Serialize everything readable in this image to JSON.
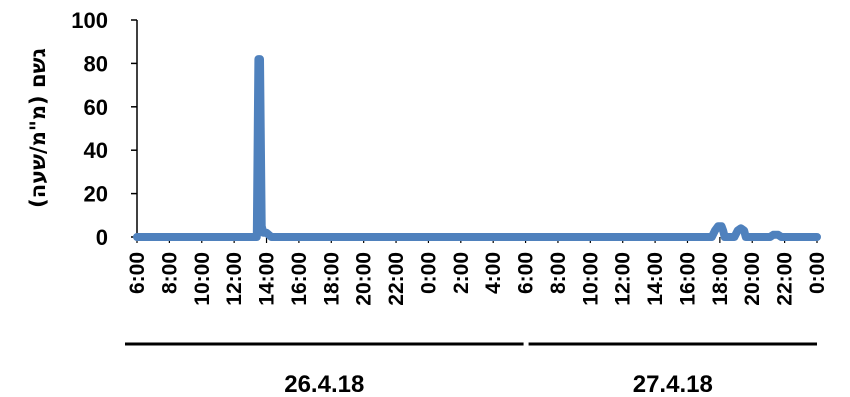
{
  "chart_data": {
    "type": "line",
    "ylabel": "גשם (מ\"מ/שעה)",
    "ylim": [
      0,
      100
    ],
    "y_ticks": [
      "0",
      "20",
      "40",
      "60",
      "80",
      "100"
    ],
    "x_tick_labels": [
      "6:00",
      "8:00",
      "10:00",
      "12:00",
      "14:00",
      "16:00",
      "18:00",
      "20:00",
      "22:00",
      "0:00",
      "2:00",
      "4:00",
      "6:00",
      "8:00",
      "10:00",
      "12:00",
      "14:00",
      "16:00",
      "18:00",
      "20:00",
      "22:00",
      "0:00"
    ],
    "x_range_hours": [
      0,
      42
    ],
    "x_groups": [
      {
        "label": "26.4.18"
      },
      {
        "label": "27.4.18"
      }
    ],
    "series": [
      {
        "color": "#4F81BD",
        "x": [
          0,
          7.0,
          7.4,
          7.5,
          7.6,
          7.7,
          7.8,
          8.0,
          8.3,
          35.5,
          35.7,
          35.9,
          36.1,
          36.2,
          36.3,
          36.5,
          36.9,
          37.1,
          37.3,
          37.5,
          37.6,
          39.1,
          39.3,
          39.6,
          39.8,
          42
        ],
        "y": [
          0,
          0,
          0,
          82,
          82,
          5,
          2,
          2,
          0,
          0,
          3,
          5,
          5,
          3,
          0,
          0,
          0,
          3,
          4,
          3,
          0,
          0,
          1,
          1,
          0,
          0
        ]
      }
    ]
  }
}
